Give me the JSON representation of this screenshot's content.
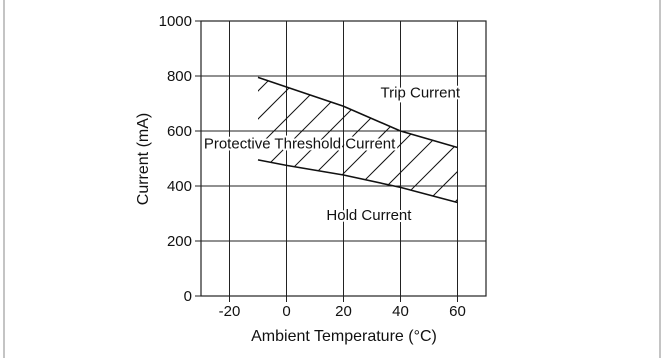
{
  "chart_data": {
    "type": "line",
    "xlabel": "Ambient Temperature (°C)",
    "ylabel": "Current (mA)",
    "xlim": [
      -30,
      70
    ],
    "ylim": [
      0,
      1000
    ],
    "x_ticks": [
      -20,
      0,
      20,
      40,
      60
    ],
    "y_ticks": [
      0,
      200,
      400,
      600,
      800,
      1000
    ],
    "x_tick_labels": [
      "-20",
      "0",
      "20",
      "40",
      "60"
    ],
    "y_tick_labels": [
      "0",
      "200",
      "400",
      "600",
      "800",
      "1000"
    ],
    "grid": true,
    "series": [
      {
        "name": "Trip Current",
        "points": [
          [
            -10,
            795
          ],
          [
            0,
            760
          ],
          [
            20,
            690
          ],
          [
            40,
            600
          ],
          [
            60,
            540
          ]
        ]
      },
      {
        "name": "Hold Current",
        "points": [
          [
            -10,
            495
          ],
          [
            0,
            475
          ],
          [
            20,
            440
          ],
          [
            40,
            395
          ],
          [
            60,
            340
          ]
        ]
      }
    ],
    "shaded_region": "between Trip Current and Hold Current (hatched)",
    "annotations": [
      {
        "text": "Trip Current",
        "x": 33,
        "y": 740
      },
      {
        "text": "Protective Threshold Current",
        "x": -29,
        "y": 555
      },
      {
        "text": "Hold Current",
        "x": 14,
        "y": 295
      }
    ]
  },
  "colors": {
    "line": "#111111",
    "grid": "#222222",
    "background": "#ffffff"
  }
}
